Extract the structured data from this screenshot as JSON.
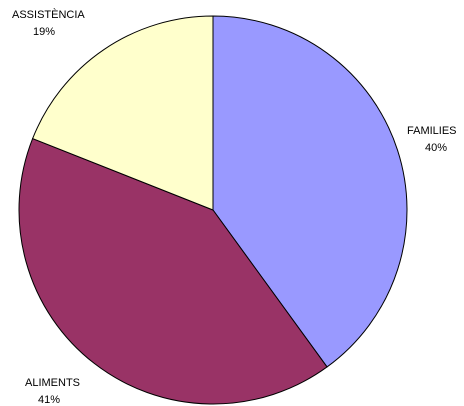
{
  "chart_data": {
    "type": "pie",
    "slices": [
      {
        "label": "FAMILIES",
        "percent_label": "40%",
        "value": 40,
        "color": "#9999ff"
      },
      {
        "label": "ALIMENTS",
        "percent_label": "41%",
        "value": 41,
        "color": "#993366"
      },
      {
        "label": "ASSISTÈNCIA",
        "percent_label": "19%",
        "value": 19,
        "color": "#ffffcc"
      }
    ],
    "start_direction": "top",
    "direction": "clockwise",
    "legend": "none",
    "border_color": "#000000"
  }
}
